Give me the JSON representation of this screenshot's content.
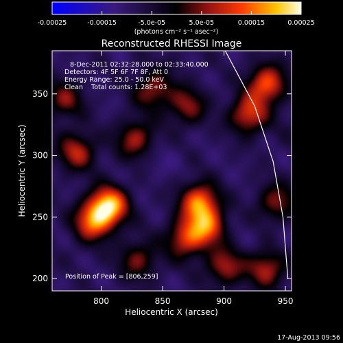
{
  "chart_data": {
    "type": "heatmap",
    "title": "Reconstructed RHESSI Image",
    "xlabel": "Heliocentric X (arcsec)",
    "ylabel": "Heliocentric Y (arcsec)",
    "xlim": [
      760,
      955
    ],
    "ylim": [
      190,
      385
    ],
    "x_ticks": [
      800,
      850,
      900,
      950
    ],
    "y_ticks": [
      200,
      250,
      300,
      350
    ],
    "colorbar": {
      "range": [
        -0.00025,
        0.00025
      ],
      "tick_labels": [
        "-0.00025",
        "-0.00015",
        "-5.0e-05",
        "5.0e-05",
        "0.00015",
        "0.00025"
      ],
      "tick_values": [
        -0.00025,
        -0.00015,
        -5e-05,
        5e-05,
        0.00015,
        0.00025
      ],
      "unit_label": "(photons cm⁻² s⁻¹ asec⁻²)"
    },
    "info_lines": [
      "8-Dec-2011 02:32:28.000 to 02:33:40.000",
      "Detectors: 4F 5F 6F 7F 8F, Att 0",
      "Energy Range: 25.0 - 50.0 keV",
      "Clean    Total counts: 1.28E+03"
    ],
    "peak_label": "Position of Peak = [806,259]",
    "peak": [
      806,
      259
    ],
    "sources": [
      {
        "x": 806,
        "y": 259,
        "value": 0.00025
      },
      {
        "x": 793,
        "y": 246,
        "value": 0.00016
      },
      {
        "x": 880,
        "y": 262,
        "value": 0.00019
      },
      {
        "x": 886,
        "y": 242,
        "value": 0.00015
      },
      {
        "x": 868,
        "y": 232,
        "value": 0.00012
      },
      {
        "x": 935,
        "y": 358,
        "value": 0.00017
      },
      {
        "x": 920,
        "y": 333,
        "value": 0.00014
      },
      {
        "x": 780,
        "y": 303,
        "value": 0.00011
      },
      {
        "x": 828,
        "y": 313,
        "value": 0.0001
      },
      {
        "x": 842,
        "y": 353,
        "value": 9e-05
      },
      {
        "x": 901,
        "y": 210,
        "value": 0.0001
      },
      {
        "x": 935,
        "y": 208,
        "value": 0.00011
      },
      {
        "x": 870,
        "y": 340,
        "value": 8e-05
      },
      {
        "x": 943,
        "y": 262,
        "value": 8e-05
      },
      {
        "x": 830,
        "y": 215,
        "value": 7e-05
      },
      {
        "x": 770,
        "y": 345,
        "value": 7e-05
      },
      {
        "x": 850,
        "y": 290,
        "value": -9e-05
      },
      {
        "x": 845,
        "y": 300,
        "value": -0.0001
      },
      {
        "x": 912,
        "y": 290,
        "value": -8e-05
      },
      {
        "x": 908,
        "y": 230,
        "value": -9e-05
      },
      {
        "x": 950,
        "y": 230,
        "value": -0.0001
      },
      {
        "x": 812,
        "y": 335,
        "value": -8e-05
      },
      {
        "x": 780,
        "y": 220,
        "value": -7e-05
      },
      {
        "x": 860,
        "y": 375,
        "value": -6e-05
      },
      {
        "x": 955,
        "y": 320,
        "value": -6e-05
      }
    ],
    "limb_curve": [
      [
        901,
        385
      ],
      [
        925,
        340
      ],
      [
        940,
        295
      ],
      [
        948,
        250
      ],
      [
        952,
        200
      ]
    ],
    "footer_date": "17-Aug-2013 09:56"
  }
}
